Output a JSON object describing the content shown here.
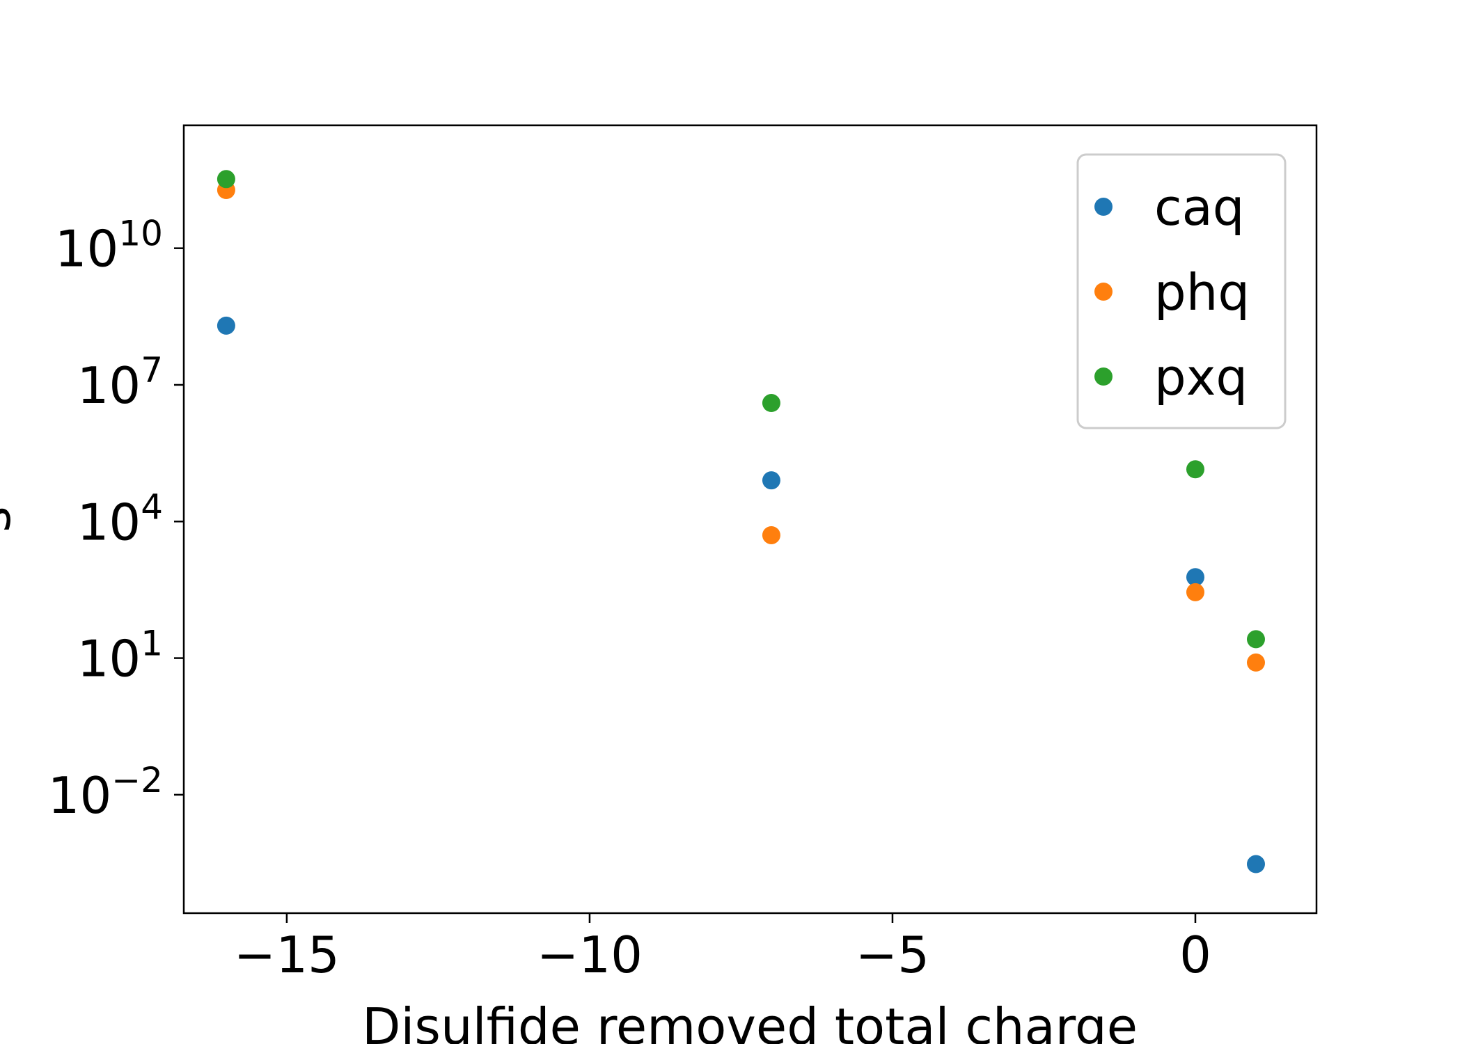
{
  "chart_data": {
    "type": "scatter",
    "title": "",
    "xlabel": "Disulfide removed total charge",
    "ylabel": "s",
    "xlim": [
      -16.7,
      2.0
    ],
    "ylim": [
      -4.6,
      12.7
    ],
    "yscale": "log",
    "xticks": [
      {
        "value": -15,
        "label": "−15"
      },
      {
        "value": -10,
        "label": "−10"
      },
      {
        "value": -5,
        "label": "−5"
      },
      {
        "value": 0,
        "label": "0"
      }
    ],
    "yticks": [
      {
        "exponent": -2,
        "base": "10",
        "exp_label": "−2"
      },
      {
        "exponent": 1,
        "base": "10",
        "exp_label": "1"
      },
      {
        "exponent": 4,
        "base": "10",
        "exp_label": "4"
      },
      {
        "exponent": 7,
        "base": "10",
        "exp_label": "7"
      },
      {
        "exponent": 10,
        "base": "10",
        "exp_label": "10"
      }
    ],
    "legend_position": "top-right",
    "grid": false,
    "series": [
      {
        "name": "caq",
        "color": "#1f77b4",
        "points": [
          {
            "x": -16,
            "y": 200000000.0
          },
          {
            "x": -7,
            "y": 80000.0
          },
          {
            "x": 0,
            "y": 600
          },
          {
            "x": 1,
            "y": 0.0003
          }
        ]
      },
      {
        "name": "phq",
        "color": "#ff7f0e",
        "points": [
          {
            "x": -16,
            "y": 190000000000.0
          },
          {
            "x": -7,
            "y": 5000
          },
          {
            "x": 0,
            "y": 280
          },
          {
            "x": 1,
            "y": 8.0
          }
        ]
      },
      {
        "name": "pxq",
        "color": "#2ca02c",
        "points": [
          {
            "x": -16,
            "y": 330000000000.0
          },
          {
            "x": -7,
            "y": 4000000.0
          },
          {
            "x": 0,
            "y": 140000.0
          },
          {
            "x": 1,
            "y": 26
          }
        ]
      }
    ]
  }
}
